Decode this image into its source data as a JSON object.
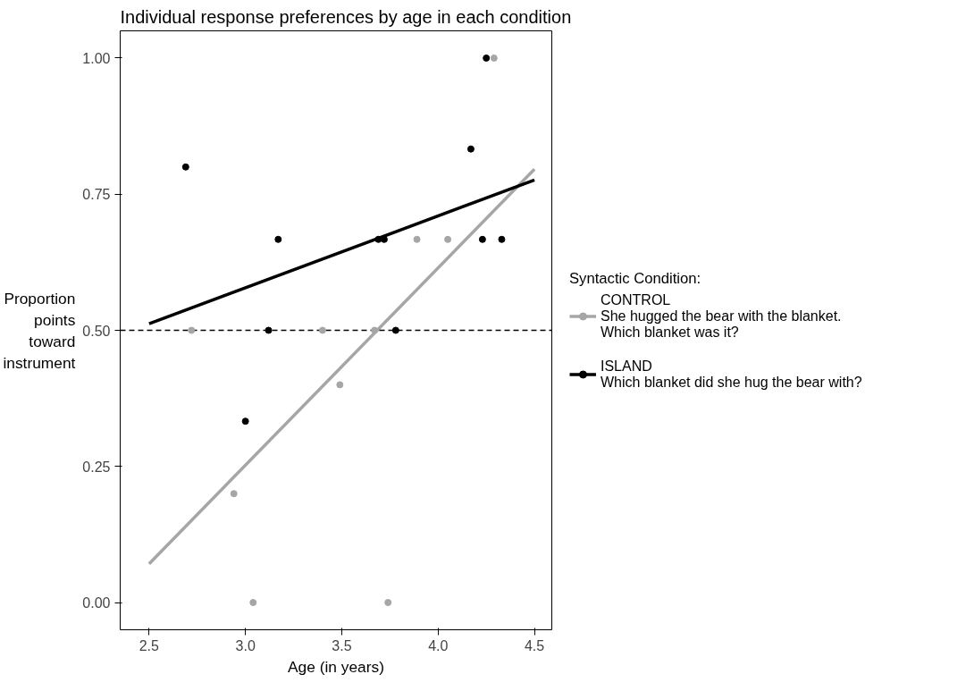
{
  "chart_data": {
    "type": "scatter",
    "title": "Individual response preferences by age in each condition",
    "xlabel": "Age (in years)",
    "ylabel": "Proportion\npoints\ntoward\ninstrument",
    "legend_title": "Syntactic Condition:",
    "legend": "right",
    "grid": false,
    "marker": "circle",
    "xlim": [
      2.35,
      4.59
    ],
    "ylim": [
      -0.05,
      1.05
    ],
    "xticks": [
      {
        "value": 2.5,
        "label": "2.5"
      },
      {
        "value": 3,
        "label": "3.0"
      },
      {
        "value": 3.5,
        "label": "3.5"
      },
      {
        "value": 4,
        "label": "4.0"
      },
      {
        "value": 4.5,
        "label": "4.5"
      }
    ],
    "yticks": [
      {
        "value": 0,
        "label": "0.00"
      },
      {
        "value": 0.25,
        "label": "0.25"
      },
      {
        "value": 0.5,
        "label": "0.50"
      },
      {
        "value": 0.75,
        "label": "0.75"
      },
      {
        "value": 1,
        "label": "1.00"
      }
    ],
    "ref_lines": [
      {
        "axis": "y",
        "value": 0.5,
        "color": "#000000",
        "line_style": "dashed"
      }
    ],
    "series": [
      {
        "name": "CONTROL\nShe hugged the bear with the blanket.\nWhich blanket was it?",
        "color": "#a6a6a6",
        "x": [
          2.72,
          2.94,
          3.04,
          3.4,
          3.49,
          3.67,
          3.74,
          3.89,
          4.05,
          4.29
        ],
        "values": [
          0.5,
          0.2,
          0,
          0.5,
          0.4,
          0.5,
          0,
          0.667,
          0.667,
          1
        ]
      },
      {
        "name": "ISLAND\nWhich blanket did she hug the bear with?",
        "color": "#000000",
        "x": [
          2.69,
          3.0,
          3.12,
          3.17,
          3.69,
          3.72,
          3.78,
          4.17,
          4.23,
          4.25,
          4.33
        ],
        "values": [
          0.8,
          0.333,
          0.5,
          0.667,
          0.667,
          0.667,
          0.5,
          0.833,
          0.667,
          1,
          0.667
        ]
      },
      {
        "type": "line",
        "marker": "none",
        "color": "#a6a6a6",
        "x": [
          2.5,
          4.5
        ],
        "values": [
          0.071,
          0.796
        ]
      },
      {
        "type": "line",
        "marker": "none",
        "color": "#000000",
        "x": [
          2.5,
          4.5
        ],
        "values": [
          0.512,
          0.776
        ]
      }
    ]
  }
}
